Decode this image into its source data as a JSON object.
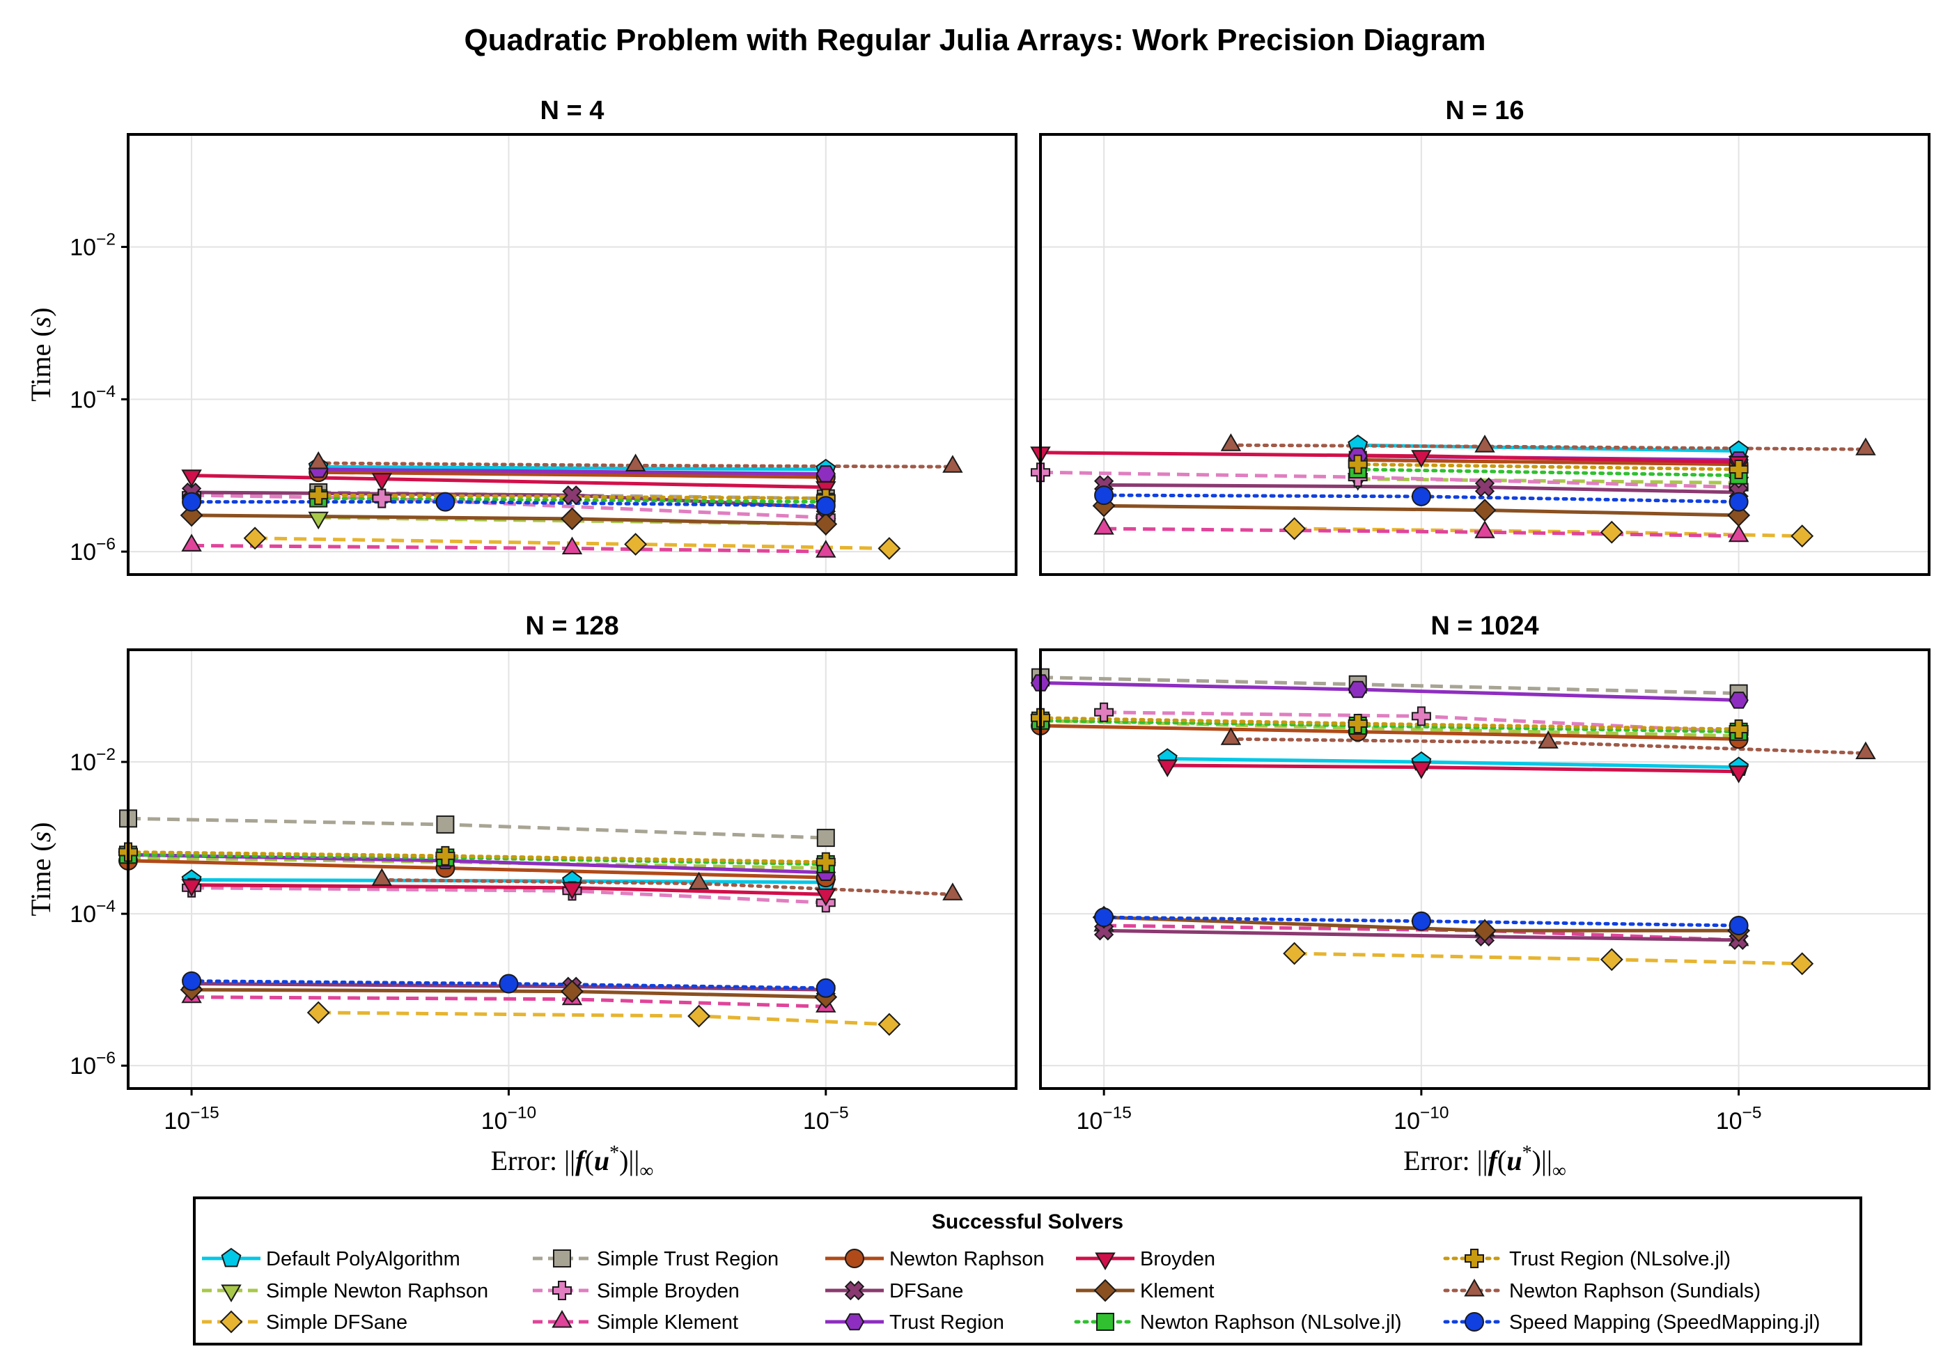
{
  "figure_title": "Quadratic Problem with Regular Julia Arrays: Work Precision Diagram",
  "legend": {
    "title": "Successful Solvers",
    "columns": 5,
    "placement": "bottom"
  },
  "axes_text": {
    "xlabel": "Error: ||f(u*)||∞",
    "ylabel": "Time (s)",
    "x_ticks": [
      {
        "exp": -15,
        "label": "10",
        "sup": "−15"
      },
      {
        "exp": -10,
        "label": "10",
        "sup": "−10"
      },
      {
        "exp": -5,
        "label": "10",
        "sup": "−5"
      }
    ],
    "y_ticks": [
      {
        "exp": -6,
        "label": "10",
        "sup": "−6"
      },
      {
        "exp": -4,
        "label": "10",
        "sup": "−4"
      },
      {
        "exp": -2,
        "label": "10",
        "sup": "−2"
      }
    ]
  },
  "solvers": [
    {
      "name": "Default PolyAlgorithm",
      "color": "#00c8e6",
      "marker": "pentagon",
      "dash": "solid"
    },
    {
      "name": "Simple Newton Raphson",
      "color": "#a8c84a",
      "marker": "tri-down",
      "dash": "dash"
    },
    {
      "name": "Simple DFSane",
      "color": "#e6b430",
      "marker": "diamond",
      "dash": "dash"
    },
    {
      "name": "Simple Trust Region",
      "color": "#a8a494",
      "marker": "square",
      "dash": "dash"
    },
    {
      "name": "Simple Broyden",
      "color": "#e07ec0",
      "marker": "cross",
      "dash": "dash"
    },
    {
      "name": "Simple Klement",
      "color": "#e0449a",
      "marker": "tri-up",
      "dash": "dash"
    },
    {
      "name": "Newton Raphson",
      "color": "#b04a18",
      "marker": "circle",
      "dash": "solid"
    },
    {
      "name": "DFSane",
      "color": "#8a3a70",
      "marker": "x",
      "dash": "solid"
    },
    {
      "name": "Trust Region",
      "color": "#8e2ec0",
      "marker": "hexagon",
      "dash": "solid"
    },
    {
      "name": "Broyden",
      "color": "#d0104a",
      "marker": "tri-down",
      "dash": "solid"
    },
    {
      "name": "Klement",
      "color": "#8a5020",
      "marker": "diamond",
      "dash": "solid"
    },
    {
      "name": "Newton Raphson (NLsolve.jl)",
      "color": "#30c030",
      "marker": "square",
      "dash": "dot"
    },
    {
      "name": "Trust Region (NLsolve.jl)",
      "color": "#c89a10",
      "marker": "cross",
      "dash": "dot"
    },
    {
      "name": "Newton Raphson (Sundials)",
      "color": "#a05a48",
      "marker": "tri-up",
      "dash": "dot"
    },
    {
      "name": "Speed Mapping (SpeedMapping.jl)",
      "color": "#1040e0",
      "marker": "circle",
      "dash": "dot"
    }
  ],
  "chart_data": [
    {
      "type": "scatter",
      "title": "N = 4",
      "x_scale": "log",
      "y_scale": "log",
      "xlim": [
        1e-16,
        0.01
      ],
      "ylim": [
        5e-07,
        0.3
      ],
      "grid": true,
      "xlabel": "",
      "ylabel": "Time (s)",
      "series": [
        {
          "solver": "Default PolyAlgorithm",
          "x": [
            1e-13,
            1e-05
          ],
          "y": [
            1.3e-05,
            1.2e-05
          ]
        },
        {
          "solver": "Simple Newton Raphson",
          "x": [
            1e-13,
            1e-05
          ],
          "y": [
            2.8e-06,
            2.3e-06
          ]
        },
        {
          "solver": "Simple DFSane",
          "x": [
            1e-14,
            1e-08,
            0.0001
          ],
          "y": [
            1.5e-06,
            1.25e-06,
            1.1e-06
          ]
        },
        {
          "solver": "Simple Trust Region",
          "x": [
            1e-13,
            1e-05
          ],
          "y": [
            6e-06,
            5e-06
          ]
        },
        {
          "solver": "Simple Broyden",
          "x": [
            1e-15,
            1e-12,
            1e-05
          ],
          "y": [
            5.5e-06,
            5e-06,
            2.8e-06
          ]
        },
        {
          "solver": "Simple Klement",
          "x": [
            1e-15,
            1e-09,
            1e-05
          ],
          "y": [
            1.2e-06,
            1.1e-06,
            1e-06
          ]
        },
        {
          "solver": "Newton Raphson",
          "x": [
            1e-13,
            1e-05
          ],
          "y": [
            1.1e-05,
            9.5e-06
          ]
        },
        {
          "solver": "DFSane",
          "x": [
            1e-15,
            1e-09,
            1e-05
          ],
          "y": [
            6e-06,
            5.5e-06,
            3.8e-06
          ]
        },
        {
          "solver": "Trust Region",
          "x": [
            1e-13,
            1e-05
          ],
          "y": [
            1.2e-05,
            1.05e-05
          ]
        },
        {
          "solver": "Broyden",
          "x": [
            1e-15,
            1e-12,
            1e-05
          ],
          "y": [
            1e-05,
            9e-06,
            7e-06
          ]
        },
        {
          "solver": "Klement",
          "x": [
            1e-15,
            1e-09,
            1e-05
          ],
          "y": [
            3e-06,
            2.7e-06,
            2.3e-06
          ]
        },
        {
          "solver": "Newton Raphson (NLsolve.jl)",
          "x": [
            1e-13,
            1e-05
          ],
          "y": [
            5e-06,
            4.5e-06
          ]
        },
        {
          "solver": "Trust Region (NLsolve.jl)",
          "x": [
            1e-13,
            1e-05
          ],
          "y": [
            5.5e-06,
            5e-06
          ]
        },
        {
          "solver": "Newton Raphson (Sundials)",
          "x": [
            1e-13,
            1e-08,
            0.001
          ],
          "y": [
            1.45e-05,
            1.35e-05,
            1.3e-05
          ]
        },
        {
          "solver": "Speed Mapping (SpeedMapping.jl)",
          "x": [
            1e-15,
            1e-11,
            1e-05
          ],
          "y": [
            4.5e-06,
            4.5e-06,
            4e-06
          ]
        }
      ]
    },
    {
      "type": "scatter",
      "title": "N = 16",
      "x_scale": "log",
      "y_scale": "log",
      "xlim": [
        1e-16,
        0.01
      ],
      "ylim": [
        5e-07,
        0.3
      ],
      "grid": true,
      "xlabel": "",
      "ylabel": "",
      "series": [
        {
          "solver": "Default PolyAlgorithm",
          "x": [
            1e-11,
            1e-05
          ],
          "y": [
            2.5e-05,
            2.1e-05
          ]
        },
        {
          "solver": "Simple Newton Raphson",
          "x": [
            1e-11,
            1e-05
          ],
          "y": [
            9e-06,
            8e-06
          ]
        },
        {
          "solver": "Simple DFSane",
          "x": [
            1e-12,
            1e-07,
            0.0001
          ],
          "y": [
            2e-06,
            1.8e-06,
            1.6e-06
          ]
        },
        {
          "solver": "Simple Trust Region",
          "x": [
            1e-11,
            1e-05
          ],
          "y": [
            1.6e-05,
            1.4e-05
          ]
        },
        {
          "solver": "Simple Broyden",
          "x": [
            1e-16,
            1e-11,
            1e-05
          ],
          "y": [
            1.1e-05,
            9.5e-06,
            7e-06
          ]
        },
        {
          "solver": "Simple Klement",
          "x": [
            1e-15,
            1e-09,
            1e-05
          ],
          "y": [
            2e-06,
            1.8e-06,
            1.6e-06
          ]
        },
        {
          "solver": "Newton Raphson",
          "x": [
            1e-11,
            1e-05
          ],
          "y": [
            1.6e-05,
            1.4e-05
          ]
        },
        {
          "solver": "DFSane",
          "x": [
            1e-15,
            1e-09,
            1e-05
          ],
          "y": [
            7.5e-06,
            7e-06,
            6e-06
          ]
        },
        {
          "solver": "Trust Region",
          "x": [
            1e-11,
            1e-05
          ],
          "y": [
            1.8e-05,
            1.6e-05
          ]
        },
        {
          "solver": "Broyden",
          "x": [
            1e-16,
            1e-10,
            1e-05
          ],
          "y": [
            2e-05,
            1.8e-05,
            1.5e-05
          ]
        },
        {
          "solver": "Klement",
          "x": [
            1e-15,
            1e-09,
            1e-05
          ],
          "y": [
            4e-06,
            3.5e-06,
            3e-06
          ]
        },
        {
          "solver": "Newton Raphson (NLsolve.jl)",
          "x": [
            1e-11,
            1e-05
          ],
          "y": [
            1.2e-05,
            1e-05
          ]
        },
        {
          "solver": "Trust Region (NLsolve.jl)",
          "x": [
            1e-11,
            1e-05
          ],
          "y": [
            1.4e-05,
            1.2e-05
          ]
        },
        {
          "solver": "Newton Raphson (Sundials)",
          "x": [
            1e-13,
            1e-09,
            0.001
          ],
          "y": [
            2.5e-05,
            2.4e-05,
            2.2e-05
          ]
        },
        {
          "solver": "Speed Mapping (SpeedMapping.jl)",
          "x": [
            1e-15,
            1e-10,
            1e-05
          ],
          "y": [
            5.5e-06,
            5.3e-06,
            4.5e-06
          ]
        }
      ]
    },
    {
      "type": "scatter",
      "title": "N = 128",
      "x_scale": "log",
      "y_scale": "log",
      "xlim": [
        1e-16,
        0.01
      ],
      "ylim": [
        5e-07,
        0.3
      ],
      "grid": true,
      "xlabel": "Error: ||f(u*)||∞",
      "ylabel": "Time (s)",
      "series": [
        {
          "solver": "Default PolyAlgorithm",
          "x": [
            1e-15,
            1e-09,
            1e-05
          ],
          "y": [
            0.00028,
            0.00027,
            0.00026
          ]
        },
        {
          "solver": "Simple Newton Raphson",
          "x": [
            1e-16,
            1e-11,
            1e-05
          ],
          "y": [
            0.00055,
            0.00048,
            0.0004
          ]
        },
        {
          "solver": "Simple DFSane",
          "x": [
            1e-13,
            1e-07,
            0.0001
          ],
          "y": [
            5e-06,
            4.5e-06,
            3.5e-06
          ]
        },
        {
          "solver": "Simple Trust Region",
          "x": [
            1e-16,
            1e-11,
            1e-05
          ],
          "y": [
            0.0018,
            0.0015,
            0.001
          ]
        },
        {
          "solver": "Simple Broyden",
          "x": [
            1e-15,
            1e-09,
            1e-05
          ],
          "y": [
            0.00022,
            0.0002,
            0.00014
          ]
        },
        {
          "solver": "Simple Klement",
          "x": [
            1e-15,
            1e-09,
            1e-05
          ],
          "y": [
            8e-06,
            7.5e-06,
            6e-06
          ]
        },
        {
          "solver": "Newton Raphson",
          "x": [
            1e-16,
            1e-11,
            1e-05
          ],
          "y": [
            0.0005,
            0.0004,
            0.0003
          ]
        },
        {
          "solver": "DFSane",
          "x": [
            1e-15,
            1e-09,
            1e-05
          ],
          "y": [
            1.2e-05,
            1.1e-05,
            1e-05
          ]
        },
        {
          "solver": "Trust Region",
          "x": [
            1e-16,
            1e-11,
            1e-05
          ],
          "y": [
            0.0006,
            0.0005,
            0.00035
          ]
        },
        {
          "solver": "Broyden",
          "x": [
            1e-15,
            1e-09,
            1e-05
          ],
          "y": [
            0.00024,
            0.00022,
            0.00018
          ]
        },
        {
          "solver": "Klement",
          "x": [
            1e-15,
            1e-09,
            1e-05
          ],
          "y": [
            1e-05,
            9.5e-06,
            8e-06
          ]
        },
        {
          "solver": "Newton Raphson (NLsolve.jl)",
          "x": [
            1e-16,
            1e-11,
            1e-05
          ],
          "y": [
            0.0006,
            0.00055,
            0.00045
          ]
        },
        {
          "solver": "Trust Region (NLsolve.jl)",
          "x": [
            1e-16,
            1e-11,
            1e-05
          ],
          "y": [
            0.00065,
            0.00058,
            0.00048
          ]
        },
        {
          "solver": "Newton Raphson (Sundials)",
          "x": [
            1e-12,
            1e-07,
            0.001
          ],
          "y": [
            0.00028,
            0.00025,
            0.00018
          ]
        },
        {
          "solver": "Speed Mapping (SpeedMapping.jl)",
          "x": [
            1e-15,
            1e-10,
            1e-05
          ],
          "y": [
            1.3e-05,
            1.2e-05,
            1.05e-05
          ]
        }
      ]
    },
    {
      "type": "scatter",
      "title": "N = 1024",
      "x_scale": "log",
      "y_scale": "log",
      "xlim": [
        1e-16,
        0.01
      ],
      "ylim": [
        5e-07,
        0.3
      ],
      "grid": true,
      "xlabel": "Error: ||f(u*)||∞",
      "ylabel": "",
      "series": [
        {
          "solver": "Default PolyAlgorithm",
          "x": [
            1e-14,
            1e-10,
            1e-05
          ],
          "y": [
            0.011,
            0.01,
            0.0085
          ]
        },
        {
          "solver": "Simple Newton Raphson",
          "x": [
            1e-16,
            1e-11,
            1e-05
          ],
          "y": [
            0.035,
            0.028,
            0.022
          ]
        },
        {
          "solver": "Simple DFSane",
          "x": [
            1e-12,
            1e-07,
            0.0001
          ],
          "y": [
            3e-05,
            2.5e-05,
            2.2e-05
          ]
        },
        {
          "solver": "Simple Trust Region",
          "x": [
            1e-16,
            1e-11,
            1e-05
          ],
          "y": [
            0.13,
            0.105,
            0.08
          ]
        },
        {
          "solver": "Simple Broyden",
          "x": [
            1e-15,
            1e-10,
            1e-05
          ],
          "y": [
            0.045,
            0.04,
            0.025
          ]
        },
        {
          "solver": "Simple Klement",
          "x": [
            1e-15,
            1e-09,
            1e-05
          ],
          "y": [
            7e-05,
            6e-05,
            4.5e-05
          ]
        },
        {
          "solver": "Newton Raphson",
          "x": [
            1e-16,
            1e-11,
            1e-05
          ],
          "y": [
            0.03,
            0.025,
            0.02
          ]
        },
        {
          "solver": "DFSane",
          "x": [
            1e-15,
            1e-09,
            1e-05
          ],
          "y": [
            6e-05,
            5e-05,
            4.5e-05
          ]
        },
        {
          "solver": "Trust Region",
          "x": [
            1e-16,
            1e-11,
            1e-05
          ],
          "y": [
            0.11,
            0.09,
            0.065
          ]
        },
        {
          "solver": "Broyden",
          "x": [
            1e-14,
            1e-10,
            1e-05
          ],
          "y": [
            0.009,
            0.0085,
            0.0075
          ]
        },
        {
          "solver": "Klement",
          "x": [
            1e-15,
            1e-09,
            1e-05
          ],
          "y": [
            9e-05,
            6e-05,
            6e-05
          ]
        },
        {
          "solver": "Newton Raphson (NLsolve.jl)",
          "x": [
            1e-16,
            1e-11,
            1e-05
          ],
          "y": [
            0.035,
            0.03,
            0.025
          ]
        },
        {
          "solver": "Trust Region (NLsolve.jl)",
          "x": [
            1e-16,
            1e-11,
            1e-05
          ],
          "y": [
            0.038,
            0.032,
            0.027
          ]
        },
        {
          "solver": "Newton Raphson (Sundials)",
          "x": [
            1e-13,
            1e-08,
            0.001
          ],
          "y": [
            0.02,
            0.018,
            0.013
          ]
        },
        {
          "solver": "Speed Mapping (SpeedMapping.jl)",
          "x": [
            1e-15,
            1e-10,
            1e-05
          ],
          "y": [
            9e-05,
            8e-05,
            7e-05
          ]
        }
      ]
    }
  ]
}
